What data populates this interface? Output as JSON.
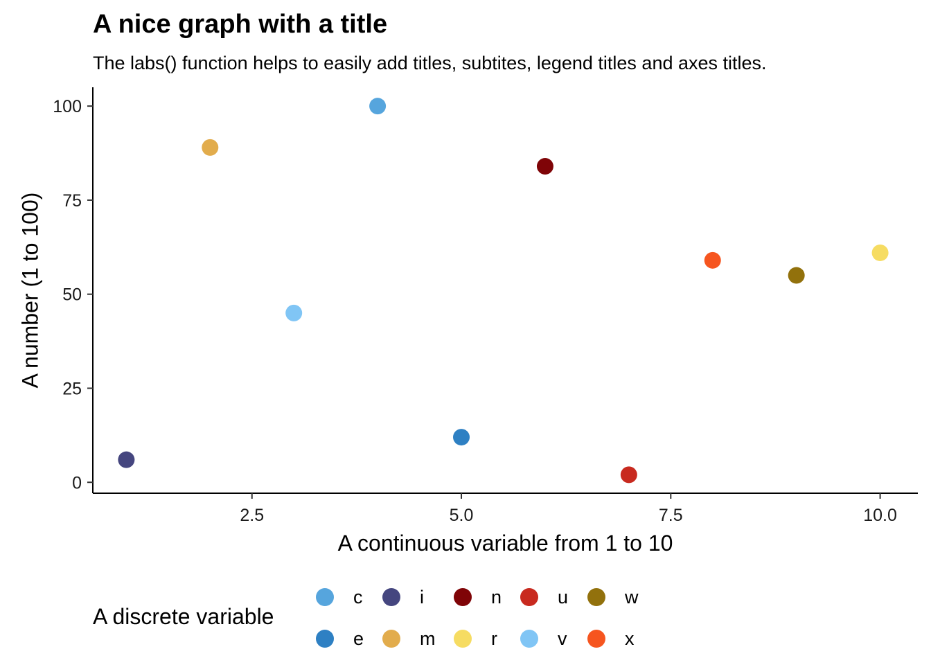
{
  "chart_data": {
    "type": "scatter",
    "title": "A nice graph with a title",
    "subtitle": "The labs() function helps to easily add titles, subtites, legend titles and axes titles.",
    "xlabel": "A continuous variable from 1 to 10",
    "ylabel": "A number (1 to 100)",
    "xlim": [
      0.6,
      10.45
    ],
    "ylim": [
      -2.9,
      105.0
    ],
    "x_ticks": [
      2.5,
      5.0,
      7.5,
      10.0
    ],
    "x_tick_labels": [
      "2.5",
      "5.0",
      "7.5",
      "10.0"
    ],
    "y_ticks": [
      0,
      25,
      50,
      75,
      100
    ],
    "y_tick_labels": [
      "0",
      "25",
      "50",
      "75",
      "100"
    ],
    "grid": false,
    "legend_title": "A discrete variable",
    "legend_position": "bottom",
    "series": [
      {
        "name": "c",
        "color": "#56a5dd",
        "points": [
          {
            "x": 4,
            "y": 100
          }
        ]
      },
      {
        "name": "e",
        "color": "#2e80c3",
        "points": [
          {
            "x": 5,
            "y": 12
          }
        ]
      },
      {
        "name": "i",
        "color": "#45467f",
        "points": [
          {
            "x": 1,
            "y": 6
          }
        ]
      },
      {
        "name": "m",
        "color": "#e2ac4c",
        "points": [
          {
            "x": 2,
            "y": 89
          }
        ]
      },
      {
        "name": "n",
        "color": "#7f0407",
        "points": [
          {
            "x": 6,
            "y": 84
          }
        ]
      },
      {
        "name": "r",
        "color": "#f6dc62",
        "points": [
          {
            "x": 10,
            "y": 61
          }
        ]
      },
      {
        "name": "u",
        "color": "#c82a1f",
        "points": [
          {
            "x": 7,
            "y": 2
          }
        ]
      },
      {
        "name": "v",
        "color": "#80c5f5",
        "points": [
          {
            "x": 3,
            "y": 45
          }
        ]
      },
      {
        "name": "w",
        "color": "#92710c",
        "points": [
          {
            "x": 9,
            "y": 55
          }
        ]
      },
      {
        "name": "x",
        "color": "#f6551f",
        "points": [
          {
            "x": 8,
            "y": 59
          }
        ]
      }
    ]
  }
}
